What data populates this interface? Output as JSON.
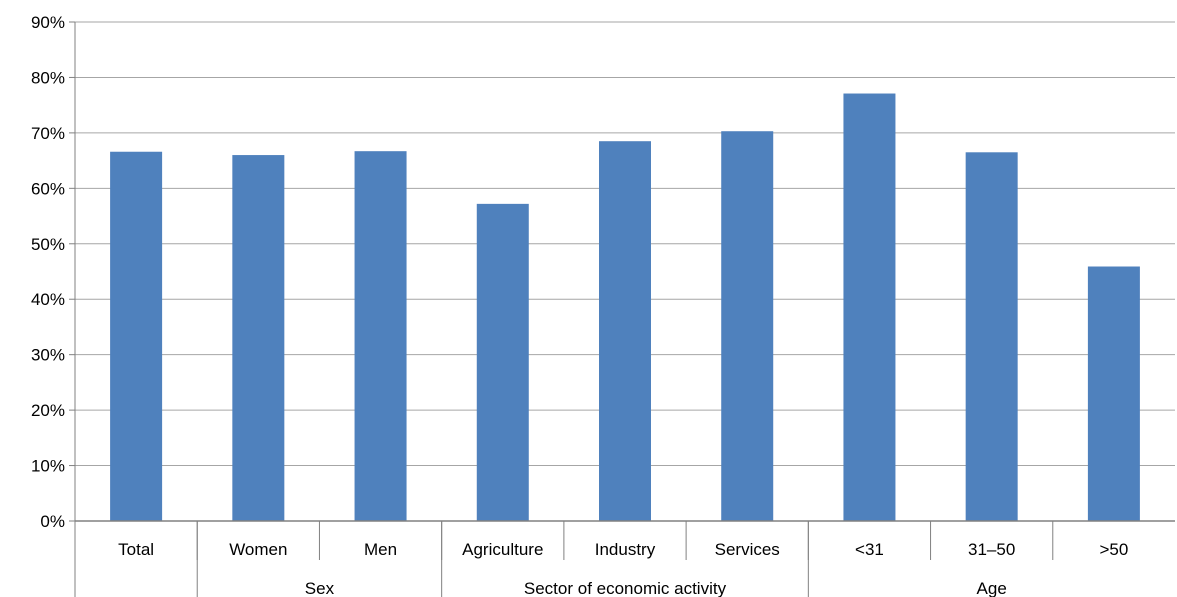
{
  "chart_data": {
    "type": "bar",
    "categories": [
      "Total",
      "Women",
      "Men",
      "Agriculture",
      "Industry",
      "Services",
      "<31",
      "31–50",
      ">50"
    ],
    "values": [
      66.6,
      66.0,
      66.7,
      57.2,
      68.5,
      70.3,
      77.1,
      66.5,
      45.9
    ],
    "groups": [
      {
        "label": "",
        "span": 1
      },
      {
        "label": "Sex",
        "span": 2
      },
      {
        "label": "Sector of economic activity",
        "span": 3
      },
      {
        "label": "Age",
        "span": 3
      }
    ],
    "yticks": [
      "0%",
      "10%",
      "20%",
      "30%",
      "40%",
      "50%",
      "60%",
      "70%",
      "80%",
      "90%"
    ],
    "ylim": [
      0,
      90
    ],
    "ystep": 10,
    "grid": true,
    "bar_color": "#4F81BD",
    "grid_color": "#A6A6A6",
    "axis_color": "#808080",
    "title": "",
    "xlabel": "",
    "ylabel": ""
  }
}
